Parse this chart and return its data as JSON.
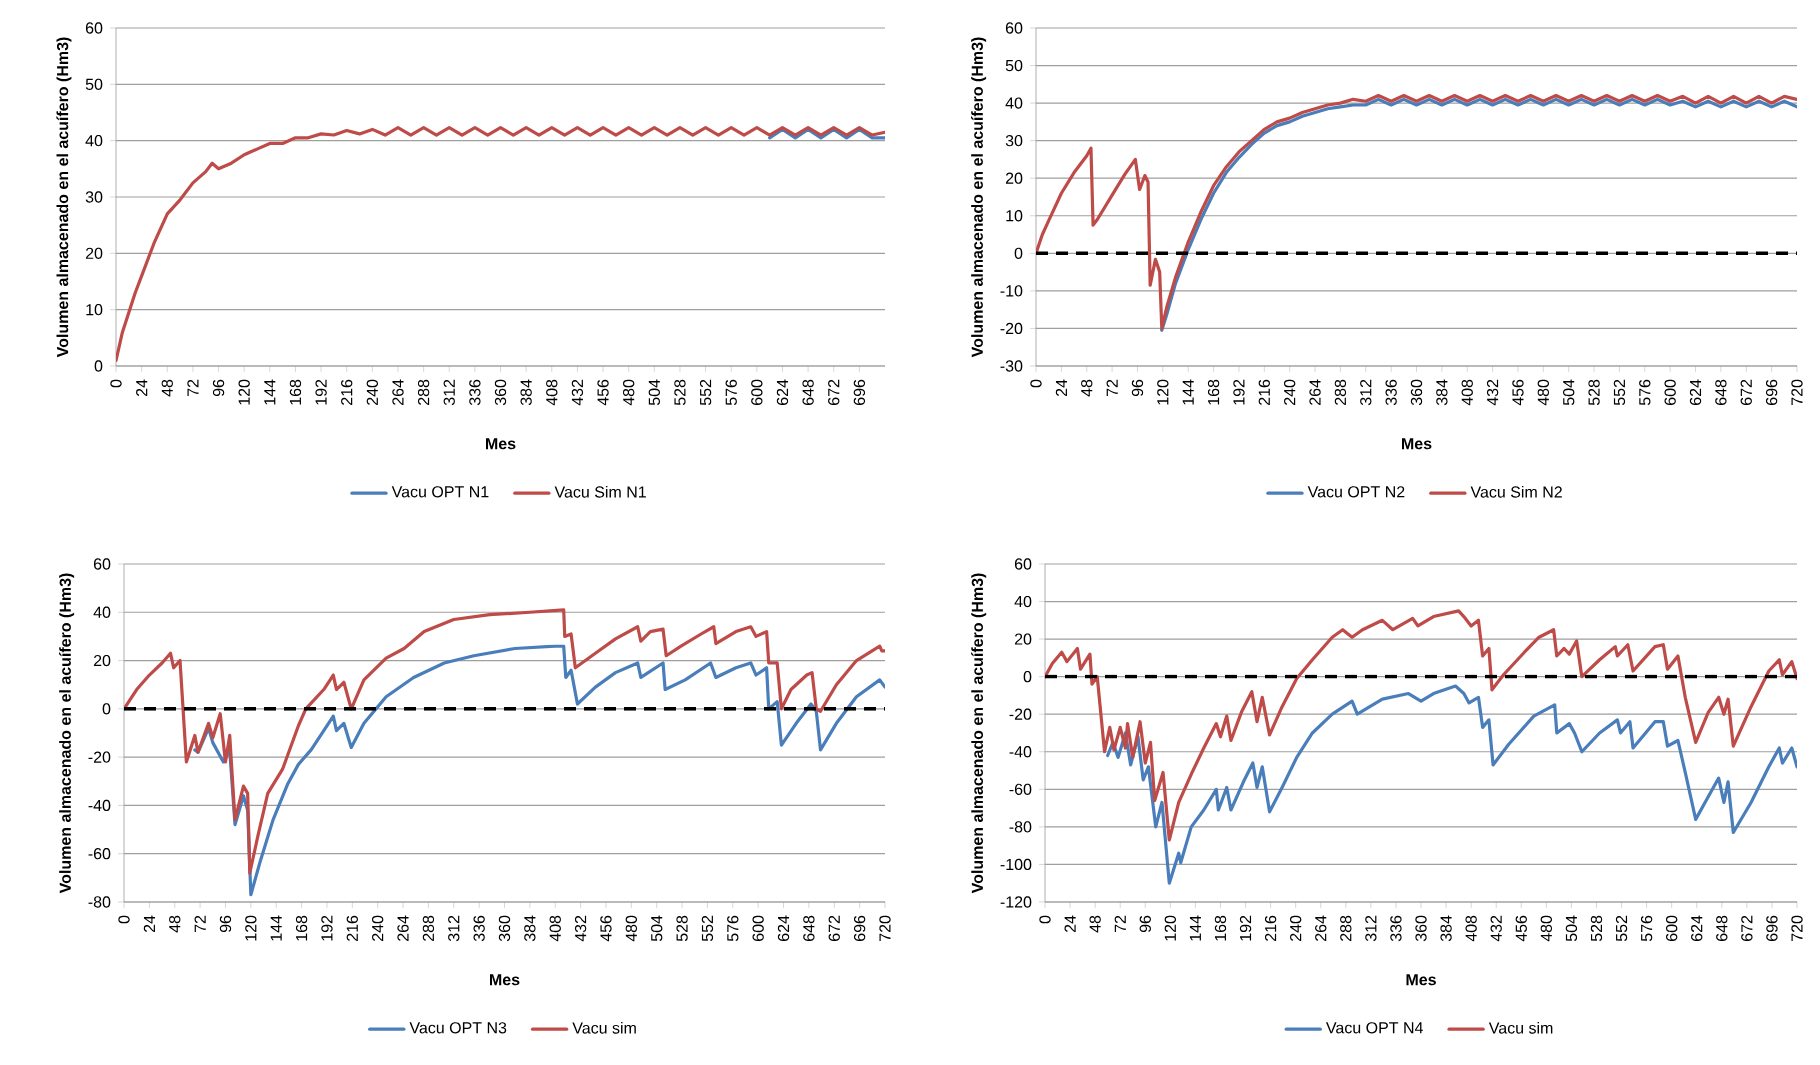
{
  "chart_data": [
    {
      "type": "line",
      "xlabel": "Mes",
      "ylabel": "Volumen almacenado en el acuífero (Hm3)",
      "xlim": [
        0,
        720
      ],
      "xticks": [
        0,
        24,
        48,
        72,
        96,
        120,
        144,
        168,
        192,
        216,
        240,
        264,
        288,
        312,
        336,
        360,
        384,
        408,
        432,
        456,
        480,
        504,
        528,
        552,
        576,
        600,
        624,
        648,
        672,
        696
      ],
      "ylim": [
        0,
        60
      ],
      "yticks": [
        0,
        10,
        20,
        30,
        40,
        50,
        60
      ],
      "grid": "y",
      "legend": "bottom",
      "series": [
        {
          "name": "Vacu OPT N1",
          "color": "#4a7ebb",
          "x": [
            612,
            624,
            636,
            648,
            660,
            672,
            684,
            696,
            708,
            720
          ],
          "values": [
            40.5,
            42,
            40.5,
            42,
            40.5,
            42,
            40.5,
            42,
            40.5,
            40.5
          ]
        },
        {
          "name": "Vacu Sim N1",
          "color": "#be4b48",
          "x": [
            0,
            6,
            12,
            18,
            24,
            36,
            48,
            60,
            72,
            84,
            90,
            96,
            108,
            120,
            132,
            144,
            156,
            168,
            180,
            192,
            204,
            216,
            228,
            240,
            252,
            264,
            276,
            288,
            300,
            312,
            324,
            336,
            348,
            360,
            372,
            384,
            396,
            408,
            420,
            432,
            444,
            456,
            468,
            480,
            492,
            504,
            516,
            528,
            540,
            552,
            564,
            576,
            588,
            600,
            612,
            624,
            636,
            648,
            660,
            672,
            684,
            696,
            708,
            720
          ],
          "values": [
            1,
            6,
            9.5,
            13,
            16,
            22,
            27,
            29.5,
            32.5,
            34.5,
            36,
            35,
            36,
            37.5,
            38.5,
            39.5,
            39.5,
            40.5,
            40.5,
            41.2,
            41,
            41.8,
            41.2,
            42,
            41,
            42.3,
            41,
            42.3,
            41,
            42.3,
            41,
            42.3,
            41,
            42.3,
            41,
            42.3,
            41,
            42.3,
            41,
            42.3,
            41,
            42.3,
            41,
            42.3,
            41,
            42.3,
            41,
            42.3,
            41,
            42.3,
            41,
            42.3,
            41,
            42.3,
            41,
            42.3,
            41,
            42.3,
            41,
            42.3,
            41,
            42.3,
            41,
            41.5
          ]
        }
      ]
    },
    {
      "type": "line",
      "xlabel": "Mes",
      "ylabel": "Volumen almacenado en el acuífero (Hm3)",
      "xlim": [
        0,
        720
      ],
      "xticks": [
        0,
        24,
        48,
        72,
        96,
        120,
        144,
        168,
        192,
        216,
        240,
        264,
        288,
        312,
        336,
        360,
        384,
        408,
        432,
        456,
        480,
        504,
        528,
        552,
        576,
        600,
        624,
        648,
        672,
        696,
        720
      ],
      "ylim": [
        -30,
        60
      ],
      "yticks": [
        -30,
        -20,
        -10,
        0,
        10,
        20,
        30,
        40,
        50,
        60
      ],
      "grid": "y",
      "legend": "bottom",
      "ref_lines": [
        {
          "axis": "y",
          "value": 0,
          "color": "#000000",
          "line_style": "dashed"
        }
      ],
      "series": [
        {
          "name": "Vacu OPT N2",
          "color": "#4a7ebb",
          "x": [
            119,
            124,
            132,
            144,
            156,
            168,
            180,
            192,
            204,
            216,
            228,
            240,
            252,
            264,
            276,
            288,
            300,
            312,
            324,
            336,
            348,
            360,
            372,
            384,
            396,
            408,
            420,
            432,
            444,
            456,
            468,
            480,
            492,
            504,
            516,
            528,
            540,
            552,
            564,
            576,
            588,
            600,
            612,
            624,
            636,
            648,
            660,
            672,
            684,
            696,
            708,
            720
          ],
          "values": [
            -20.5,
            -16,
            -8,
            1,
            9,
            16,
            21.5,
            25.5,
            29,
            32,
            34,
            35,
            36.5,
            37.5,
            38.5,
            39,
            39.5,
            39.5,
            41,
            39.5,
            41,
            39.5,
            41,
            39.5,
            41,
            39.5,
            41,
            39.5,
            41,
            39.5,
            41,
            39.5,
            41,
            39.5,
            41,
            39.5,
            41,
            39.5,
            41,
            39.5,
            41,
            39.5,
            40.5,
            39,
            40.5,
            39,
            40.5,
            39,
            40.5,
            39,
            40.5,
            39
          ]
        },
        {
          "name": "Vacu Sim N2",
          "color": "#be4b48",
          "x": [
            0,
            6,
            12,
            24,
            36,
            48,
            52,
            54,
            58,
            72,
            84,
            94,
            98,
            103,
            106,
            108,
            113,
            117,
            119,
            124,
            132,
            144,
            156,
            168,
            180,
            192,
            204,
            216,
            228,
            240,
            252,
            264,
            276,
            288,
            300,
            312,
            324,
            336,
            348,
            360,
            372,
            384,
            396,
            408,
            420,
            432,
            444,
            456,
            468,
            480,
            492,
            504,
            516,
            528,
            540,
            552,
            564,
            576,
            588,
            600,
            612,
            624,
            636,
            648,
            660,
            672,
            684,
            696,
            708,
            720
          ],
          "values": [
            0,
            5,
            8.7,
            16,
            21.5,
            26,
            28,
            7.5,
            9,
            15.5,
            21,
            25,
            17,
            20.7,
            19,
            -8.5,
            -1.6,
            -5,
            -20,
            -14,
            -6.4,
            3,
            11,
            18,
            23,
            27,
            30,
            33,
            35,
            36,
            37.5,
            38.5,
            39.5,
            40,
            41,
            40.5,
            42,
            40.5,
            42,
            40.5,
            42,
            40.5,
            42,
            40.5,
            42,
            40.5,
            42,
            40.5,
            42,
            40.5,
            42,
            40.5,
            42,
            40.5,
            42,
            40.5,
            42,
            40.5,
            42,
            40.5,
            41.8,
            40,
            41.8,
            40,
            41.8,
            40,
            41.8,
            40,
            41.8,
            41
          ]
        }
      ]
    },
    {
      "type": "line",
      "xlabel": "Mes",
      "ylabel": "Volumen almacenado en el acuífero (Hm3)",
      "xlim": [
        0,
        720
      ],
      "xticks": [
        0,
        24,
        48,
        72,
        96,
        120,
        144,
        168,
        192,
        216,
        240,
        264,
        288,
        312,
        336,
        360,
        384,
        408,
        432,
        456,
        480,
        504,
        528,
        552,
        576,
        600,
        624,
        648,
        672,
        696,
        720
      ],
      "ylim": [
        -80,
        60
      ],
      "yticks": [
        -80,
        -60,
        -40,
        -20,
        0,
        20,
        40,
        60
      ],
      "grid": "y",
      "legend": "bottom",
      "ref_lines": [
        {
          "axis": "y",
          "value": 0,
          "color": "#000000",
          "line_style": "dashed"
        }
      ],
      "series": [
        {
          "name": "Vacu OPT N3",
          "color": "#4a7ebb",
          "x": [
            67,
            70,
            80,
            84,
            94,
            100,
            105,
            113,
            117,
            120,
            129,
            141,
            155,
            165,
            177,
            189,
            198,
            201,
            208,
            215,
            227,
            248,
            274,
            303,
            331,
            370,
            408,
            416,
            418,
            423,
            429,
            446,
            465,
            486,
            489,
            510,
            512,
            531,
            555,
            560,
            579,
            593,
            598,
            608,
            610,
            618,
            622,
            636,
            650,
            655,
            659,
            674,
            693,
            715,
            720
          ],
          "values": [
            -17,
            -18,
            -8,
            -14,
            -22,
            -17,
            -48,
            -36,
            -42,
            -77,
            -63,
            -46,
            -31,
            -23,
            -17,
            -9,
            -3,
            -9,
            -6,
            -16,
            -6,
            5,
            13,
            19,
            22,
            25,
            26,
            26,
            13,
            16,
            2,
            9,
            15,
            19,
            13,
            19,
            8,
            12,
            19,
            13,
            17,
            19,
            14,
            17,
            0,
            3,
            -15,
            -6,
            2,
            -1,
            -17,
            -6,
            5,
            12,
            9
          ]
        },
        {
          "name": "Vacu sim",
          "color": "#be4b48",
          "x": [
            0,
            12,
            24,
            36,
            44,
            47,
            53,
            59,
            67,
            70,
            80,
            84,
            91,
            96,
            100,
            105,
            113,
            117,
            119,
            127,
            136,
            150,
            165,
            172,
            189,
            198,
            201,
            208,
            215,
            227,
            248,
            265,
            284,
            312,
            346,
            384,
            416,
            417,
            423,
            427,
            446,
            465,
            486,
            489,
            498,
            510,
            513,
            527,
            546,
            558,
            560,
            579,
            593,
            598,
            608,
            610,
            618,
            622,
            631,
            646,
            651,
            655,
            659,
            674,
            693,
            715,
            717,
            720
          ],
          "values": [
            0,
            8,
            14,
            19,
            23,
            17,
            20,
            -22,
            -11,
            -18,
            -6,
            -12,
            -2,
            -22,
            -11,
            -46,
            -32,
            -35,
            -68,
            -52,
            -35,
            -25,
            -7,
            0,
            8,
            14,
            8,
            11,
            0,
            12,
            21,
            25,
            32,
            37,
            39,
            40,
            41,
            30,
            31,
            17,
            23,
            29,
            34,
            28,
            32,
            33,
            22,
            26,
            31,
            34,
            27,
            32,
            34,
            30,
            32,
            19,
            19,
            0,
            8,
            14,
            15,
            0,
            -1,
            10,
            20,
            26,
            24,
            24
          ]
        }
      ]
    },
    {
      "type": "line",
      "xlabel": "Mes",
      "ylabel": "Volumen almacenado en el acuífero (Hm3)",
      "xlim": [
        0,
        720
      ],
      "xticks": [
        0,
        24,
        48,
        72,
        96,
        120,
        144,
        168,
        192,
        216,
        240,
        264,
        288,
        312,
        336,
        360,
        384,
        408,
        432,
        456,
        480,
        504,
        528,
        552,
        576,
        600,
        624,
        648,
        672,
        696,
        720
      ],
      "ylim": [
        -120,
        60
      ],
      "yticks": [
        -120,
        -100,
        -80,
        -60,
        -40,
        -20,
        0,
        20,
        40,
        60
      ],
      "grid": "y",
      "legend": "bottom",
      "ref_lines": [
        {
          "axis": "y",
          "value": 0,
          "color": "#000000",
          "line_style": "dashed"
        }
      ],
      "series": [
        {
          "name": "Vacu OPT N4",
          "color": "#4a7ebb",
          "x": [
            60,
            65,
            70,
            77,
            82,
            89,
            94,
            99,
            106,
            112,
            119,
            128,
            130,
            140,
            152,
            164,
            166,
            174,
            178,
            190,
            199,
            203,
            208,
            215,
            227,
            241,
            256,
            275,
            294,
            299,
            323,
            348,
            360,
            372,
            393,
            401,
            406,
            415,
            419,
            425,
            429,
            444,
            468,
            488,
            490,
            502,
            507,
            514,
            531,
            548,
            551,
            560,
            563,
            584,
            592,
            596,
            606,
            613,
            623,
            635,
            645,
            650,
            654,
            659,
            676,
            693,
            703,
            706,
            715,
            720
          ],
          "values": [
            -42,
            -35,
            -43,
            -30,
            -47,
            -32,
            -55,
            -48,
            -80,
            -67,
            -110,
            -94,
            -99,
            -80,
            -71,
            -60,
            -71,
            -59,
            -71,
            -56,
            -46,
            -59,
            -48,
            -72,
            -59,
            -43,
            -30,
            -20,
            -13,
            -20,
            -12,
            -9,
            -13,
            -9,
            -5,
            -9,
            -14,
            -11,
            -27,
            -23,
            -47,
            -36,
            -21,
            -15,
            -30,
            -25,
            -30,
            -40,
            -30,
            -23,
            -30,
            -24,
            -38,
            -24,
            -24,
            -37,
            -34,
            -51,
            -76,
            -64,
            -54,
            -67,
            -56,
            -83,
            -67,
            -48,
            -38,
            -46,
            -38,
            -48
          ]
        },
        {
          "name": "Vacu sim",
          "color": "#be4b48",
          "x": [
            0,
            7,
            16,
            21,
            31,
            34,
            43,
            45,
            50,
            57,
            62,
            66,
            72,
            77,
            79,
            84,
            91,
            96,
            101,
            105,
            113,
            119,
            128,
            140,
            152,
            164,
            168,
            174,
            178,
            188,
            198,
            203,
            208,
            215,
            227,
            241,
            256,
            275,
            285,
            294,
            304,
            323,
            333,
            352,
            357,
            372,
            396,
            401,
            408,
            415,
            419,
            425,
            428,
            439,
            459,
            473,
            487,
            490,
            497,
            502,
            509,
            514,
            531,
            546,
            548,
            558,
            563,
            584,
            592,
            596,
            606,
            613,
            623,
            635,
            645,
            650,
            654,
            659,
            676,
            693,
            703,
            706,
            715,
            720
          ],
          "values": [
            0,
            7,
            13,
            8,
            15,
            4,
            12,
            -4,
            0,
            -40,
            -27,
            -39,
            -27,
            -38,
            -25,
            -43,
            -24,
            -46,
            -35,
            -66,
            -51,
            -87,
            -67,
            -52,
            -38,
            -25,
            -32,
            -21,
            -34,
            -19,
            -8,
            -24,
            -11,
            -31,
            -16,
            -1,
            9,
            21,
            25,
            21,
            25,
            30,
            25,
            31,
            27,
            32,
            35,
            32,
            27,
            30,
            11,
            15,
            -7,
            1,
            13,
            21,
            25,
            11,
            15,
            12,
            19,
            0,
            9,
            16,
            11,
            17,
            3,
            16,
            17,
            4,
            11,
            -11,
            -35,
            -19,
            -11,
            -20,
            -12,
            -37,
            -16,
            3,
            9,
            1,
            8,
            -1
          ]
        }
      ]
    }
  ]
}
